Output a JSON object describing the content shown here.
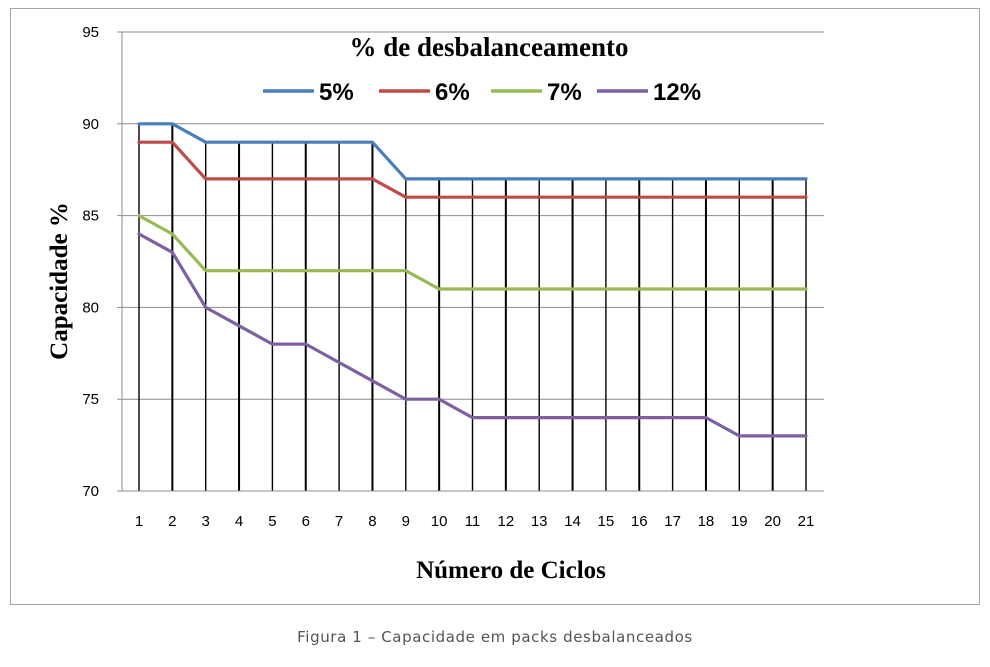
{
  "chart_data": {
    "type": "line",
    "title": "% de desbalanceamento",
    "xlabel": "Número de Ciclos",
    "ylabel": "Capacidade %",
    "categories": [
      "1",
      "2",
      "3",
      "4",
      "5",
      "6",
      "7",
      "8",
      "9",
      "10",
      "11",
      "12",
      "13",
      "14",
      "15",
      "16",
      "17",
      "18",
      "19",
      "20",
      "21"
    ],
    "ylim": [
      70,
      95
    ],
    "yticks": [
      "70",
      "75",
      "80",
      "85",
      "90",
      "95"
    ],
    "ytick_values": [
      70,
      75,
      80,
      85,
      90,
      95
    ],
    "grid": "horizontal and vertical",
    "legend_position": "top",
    "series": [
      {
        "name": "5%",
        "color": "#4a7ebb",
        "values": [
          90,
          90,
          89,
          89,
          89,
          89,
          89,
          89,
          87,
          87,
          87,
          87,
          87,
          87,
          87,
          87,
          87,
          87,
          87,
          87,
          87
        ]
      },
      {
        "name": "6%",
        "color": "#be4b48",
        "values": [
          89,
          89,
          87,
          87,
          87,
          87,
          87,
          87,
          86,
          86,
          86,
          86,
          86,
          86,
          86,
          86,
          86,
          86,
          86,
          86,
          86
        ]
      },
      {
        "name": "7%",
        "color": "#98b954",
        "values": [
          85,
          84,
          82,
          82,
          82,
          82,
          82,
          82,
          82,
          81,
          81,
          81,
          81,
          81,
          81,
          81,
          81,
          81,
          81,
          81,
          81
        ]
      },
      {
        "name": "12%",
        "color": "#7d60a0",
        "values": [
          84,
          83,
          80,
          79,
          78,
          78,
          77,
          76,
          75,
          75,
          74,
          74,
          74,
          74,
          74,
          74,
          74,
          74,
          73,
          73,
          73
        ]
      }
    ]
  },
  "caption": "Figura 1 – Capacidade em packs desbalanceados"
}
